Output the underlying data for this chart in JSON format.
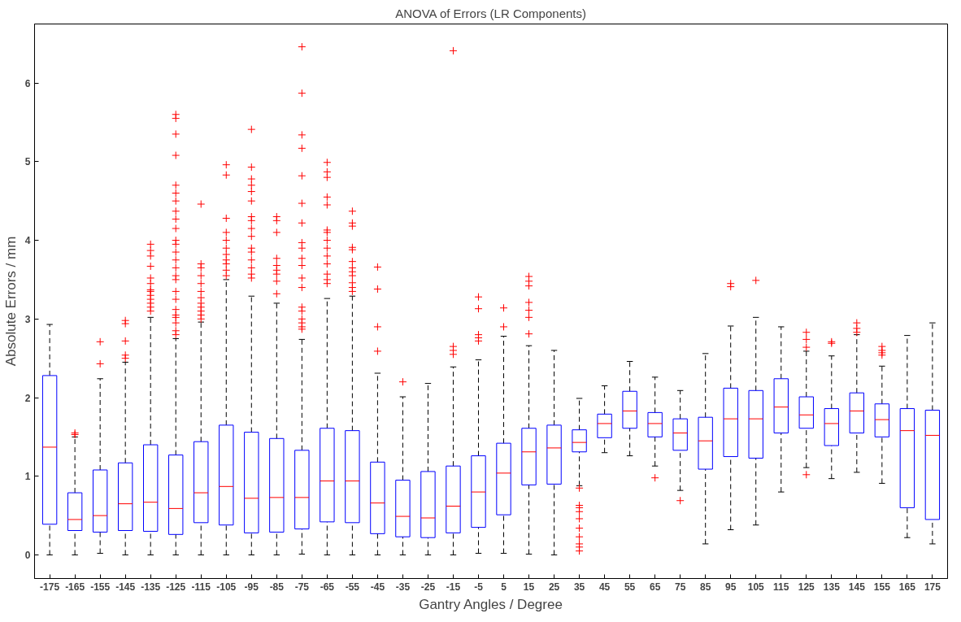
{
  "chart_data": {
    "type": "box",
    "title": "ANOVA of Errors (LR Components)",
    "xlabel": "Gantry Angles / Degree",
    "ylabel": "Absolute Errors / mm",
    "categories": [
      "-175",
      "-165",
      "-155",
      "-145",
      "-135",
      "-125",
      "-115",
      "-105",
      "-95",
      "-85",
      "-75",
      "-65",
      "-55",
      "-45",
      "-35",
      "-25",
      "-15",
      "-5",
      "5",
      "15",
      "25",
      "35",
      "45",
      "55",
      "65",
      "75",
      "85",
      "95",
      "105",
      "115",
      "125",
      "135",
      "145",
      "155",
      "165",
      "175"
    ],
    "color": "#0000ff",
    "marker": "cross",
    "ylim": [
      -0.3,
      6.75
    ],
    "yticks": [
      0,
      1,
      2,
      3,
      4,
      5,
      6
    ],
    "grid": false,
    "boxes": [
      {
        "low": 0,
        "q1": 0.39,
        "median": 1.37,
        "q3": 2.28,
        "high": 2.93
      },
      {
        "low": 0,
        "q1": 0.31,
        "median": 0.45,
        "q3": 0.79,
        "high": 1.5,
        "outliers": [
          1.53,
          1.55
        ]
      },
      {
        "low": 0.02,
        "q1": 0.29,
        "median": 0.5,
        "q3": 1.08,
        "high": 2.24,
        "outliers": [
          2.43,
          2.71
        ]
      },
      {
        "low": 0,
        "q1": 0.31,
        "median": 0.65,
        "q3": 1.17,
        "high": 2.45,
        "outliers": [
          2.5,
          2.54,
          2.72,
          2.94,
          2.98
        ]
      },
      {
        "low": 0,
        "q1": 0.3,
        "median": 0.67,
        "q3": 1.4,
        "high": 3.02,
        "outliers": [
          3.1,
          3.15,
          3.2,
          3.25,
          3.3,
          3.35,
          3.37,
          3.45,
          3.52,
          3.67,
          3.8,
          3.87,
          3.95
        ]
      },
      {
        "low": 0,
        "q1": 0.26,
        "median": 0.59,
        "q3": 1.27,
        "high": 2.75,
        "outliers": [
          2.8,
          2.85,
          2.95,
          3.02,
          3.05,
          3.12,
          3.25,
          3.35,
          3.5,
          3.55,
          3.65,
          3.75,
          3.85,
          3.95,
          4.0,
          4.15,
          4.27,
          4.37,
          4.5,
          4.6,
          4.7,
          5.08,
          5.35,
          5.55,
          5.6
        ]
      },
      {
        "low": 0,
        "q1": 0.41,
        "median": 0.79,
        "q3": 1.44,
        "high": 2.96,
        "outliers": [
          3.0,
          3.05,
          3.1,
          3.15,
          3.2,
          3.27,
          3.35,
          3.45,
          3.55,
          3.65,
          3.7,
          4.46
        ]
      },
      {
        "low": 0,
        "q1": 0.38,
        "median": 0.87,
        "q3": 1.65,
        "high": 3.5,
        "outliers": [
          3.55,
          3.62,
          3.7,
          3.75,
          3.82,
          3.9,
          4.0,
          4.1,
          4.28,
          4.83,
          4.96
        ]
      },
      {
        "low": 0,
        "q1": 0.28,
        "median": 0.72,
        "q3": 1.56,
        "high": 3.29,
        "outliers": [
          3.52,
          3.57,
          3.65,
          3.75,
          3.85,
          3.9,
          4.05,
          4.15,
          4.25,
          4.3,
          4.5,
          4.62,
          4.7,
          4.78,
          4.93,
          5.41
        ]
      },
      {
        "low": 0,
        "q1": 0.29,
        "median": 0.73,
        "q3": 1.48,
        "high": 3.2,
        "outliers": [
          3.32,
          3.48,
          3.57,
          3.62,
          3.68,
          3.77,
          4.1,
          4.25,
          4.3
        ]
      },
      {
        "low": 0.01,
        "q1": 0.33,
        "median": 0.73,
        "q3": 1.33,
        "high": 2.74,
        "outliers": [
          2.87,
          2.9,
          2.95,
          3.0,
          3.1,
          3.15,
          3.4,
          3.52,
          3.68,
          3.77,
          3.9,
          3.97,
          4.22,
          4.47,
          4.82,
          5.17,
          5.34,
          5.87,
          6.46
        ]
      },
      {
        "low": 0,
        "q1": 0.42,
        "median": 0.94,
        "q3": 1.61,
        "high": 3.26,
        "outliers": [
          3.45,
          3.5,
          3.57,
          3.7,
          3.8,
          3.9,
          4.0,
          4.1,
          4.13,
          4.45,
          4.55,
          4.8,
          4.87,
          4.99
        ]
      },
      {
        "low": 0,
        "q1": 0.41,
        "median": 0.94,
        "q3": 1.58,
        "high": 3.29,
        "outliers": [
          3.35,
          3.4,
          3.46,
          3.55,
          3.6,
          3.65,
          3.73,
          3.88,
          3.91,
          4.18,
          4.22,
          4.37
        ]
      },
      {
        "low": 0,
        "q1": 0.27,
        "median": 0.66,
        "q3": 1.18,
        "high": 2.31,
        "outliers": [
          2.59,
          2.9,
          3.38,
          3.66
        ]
      },
      {
        "low": 0,
        "q1": 0.23,
        "median": 0.49,
        "q3": 0.95,
        "high": 2.01,
        "outliers": [
          2.2
        ]
      },
      {
        "low": 0,
        "q1": 0.22,
        "median": 0.47,
        "q3": 1.06,
        "high": 2.18
      },
      {
        "low": 0,
        "q1": 0.28,
        "median": 0.62,
        "q3": 1.13,
        "high": 2.39,
        "outliers": [
          2.55,
          2.6,
          2.65,
          6.41
        ]
      },
      {
        "low": 0.02,
        "q1": 0.35,
        "median": 0.8,
        "q3": 1.26,
        "high": 2.48,
        "outliers": [
          2.72,
          2.76,
          2.8,
          3.13,
          3.28
        ]
      },
      {
        "low": 0.02,
        "q1": 0.51,
        "median": 1.04,
        "q3": 1.42,
        "high": 2.78,
        "outliers": [
          2.9,
          3.14
        ]
      },
      {
        "low": 0.01,
        "q1": 0.89,
        "median": 1.31,
        "q3": 1.61,
        "high": 2.66,
        "outliers": [
          2.81,
          3.02,
          3.11,
          3.21,
          3.42,
          3.48,
          3.54
        ]
      },
      {
        "low": 0,
        "q1": 0.9,
        "median": 1.36,
        "q3": 1.65,
        "high": 2.6
      },
      {
        "low": 0.88,
        "q1": 1.31,
        "median": 1.43,
        "q3": 1.59,
        "high": 1.99,
        "outliers": [
          0.05,
          0.1,
          0.14,
          0.23,
          0.34,
          0.46,
          0.55,
          0.6,
          0.63,
          0.85
        ]
      },
      {
        "low": 1.3,
        "q1": 1.49,
        "median": 1.67,
        "q3": 1.79,
        "high": 2.15
      },
      {
        "low": 1.26,
        "q1": 1.61,
        "median": 1.83,
        "q3": 2.08,
        "high": 2.46
      },
      {
        "low": 1.13,
        "q1": 1.5,
        "median": 1.67,
        "q3": 1.81,
        "high": 2.26,
        "outliers": [
          0.98
        ]
      },
      {
        "low": 0.82,
        "q1": 1.33,
        "median": 1.55,
        "q3": 1.73,
        "high": 2.09,
        "outliers": [
          0.69
        ]
      },
      {
        "low": 0.14,
        "q1": 1.09,
        "median": 1.45,
        "q3": 1.75,
        "high": 2.56
      },
      {
        "low": 0.32,
        "q1": 1.25,
        "median": 1.73,
        "q3": 2.12,
        "high": 2.91,
        "outliers": [
          3.41,
          3.45
        ]
      },
      {
        "low": 0.38,
        "q1": 1.23,
        "median": 1.73,
        "q3": 2.09,
        "high": 3.02,
        "outliers": [
          3.49
        ]
      },
      {
        "low": 0.8,
        "q1": 1.55,
        "median": 1.88,
        "q3": 2.24,
        "high": 2.9
      },
      {
        "low": 1.11,
        "q1": 1.61,
        "median": 1.78,
        "q3": 2.01,
        "high": 2.59,
        "outliers": [
          1.02,
          2.64,
          2.74,
          2.83
        ]
      },
      {
        "low": 0.97,
        "q1": 1.39,
        "median": 1.67,
        "q3": 1.86,
        "high": 2.53,
        "outliers": [
          2.69,
          2.71
        ]
      },
      {
        "low": 1.05,
        "q1": 1.55,
        "median": 1.83,
        "q3": 2.06,
        "high": 2.8,
        "outliers": [
          2.83,
          2.88,
          2.95
        ]
      },
      {
        "low": 0.91,
        "q1": 1.5,
        "median": 1.72,
        "q3": 1.92,
        "high": 2.4,
        "outliers": [
          2.54,
          2.57,
          2.6,
          2.65
        ]
      },
      {
        "low": 0.22,
        "q1": 0.6,
        "median": 1.58,
        "q3": 1.86,
        "high": 2.79
      },
      {
        "low": 0.14,
        "q1": 0.45,
        "median": 1.52,
        "q3": 1.84,
        "high": 2.95
      }
    ]
  }
}
